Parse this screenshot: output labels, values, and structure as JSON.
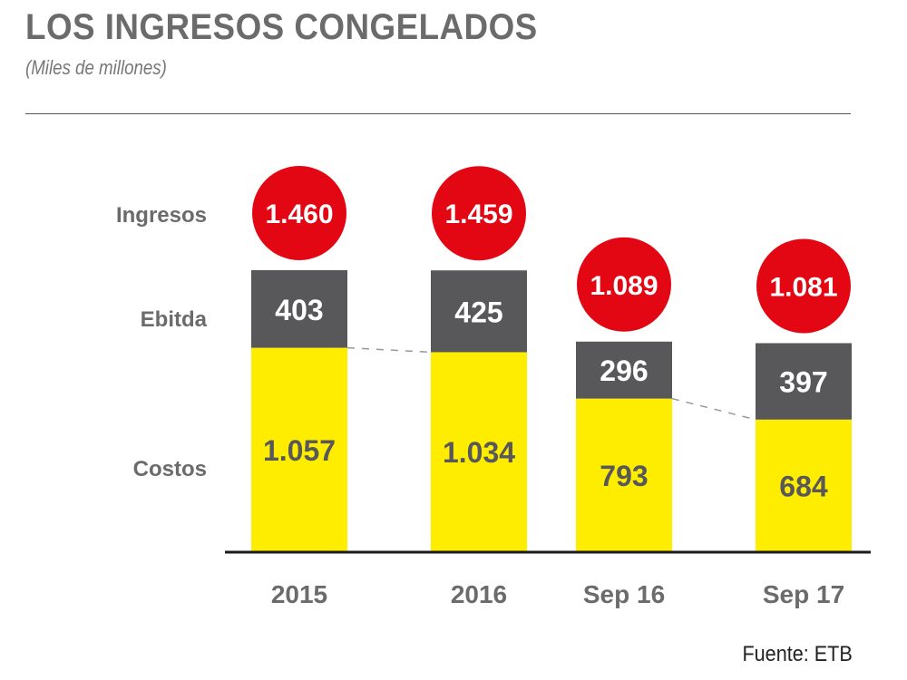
{
  "header": {
    "title": "LOS INGRESOS CONGELADOS",
    "subtitle": "(Miles de millones)"
  },
  "footer": {
    "source": "Fuente: ETB"
  },
  "colors": {
    "ingresos": "#e30613",
    "ebitda": "#58585a",
    "costos": "#ffed00",
    "text_gray": "#6b6b6b",
    "axis": "#1a1a1a"
  },
  "chart_data": {
    "type": "bar",
    "stacked": true,
    "title": "LOS INGRESOS CONGELADOS",
    "subtitle": "(Miles de millones)",
    "xlabel": "",
    "ylabel": "",
    "categories": [
      "2015",
      "2016",
      "Sep 16",
      "Sep 17"
    ],
    "row_labels": [
      "Ingresos",
      "Ebitda",
      "Costos"
    ],
    "series": [
      {
        "name": "Costos",
        "values": [
          1057,
          1034,
          793,
          684
        ],
        "labels": [
          "1.057",
          "1.034",
          "793",
          "684"
        ]
      },
      {
        "name": "Ebitda",
        "values": [
          403,
          425,
          296,
          397
        ],
        "labels": [
          "403",
          "425",
          "296",
          "397"
        ]
      }
    ],
    "totals": {
      "name": "Ingresos",
      "values": [
        1460,
        1459,
        1089,
        1081
      ],
      "labels": [
        "1.460",
        "1.459",
        "1.089",
        "1.081"
      ]
    },
    "ylim": [
      0,
      1460
    ],
    "grid": false,
    "legend": "left",
    "source": "Fuente: ETB"
  }
}
